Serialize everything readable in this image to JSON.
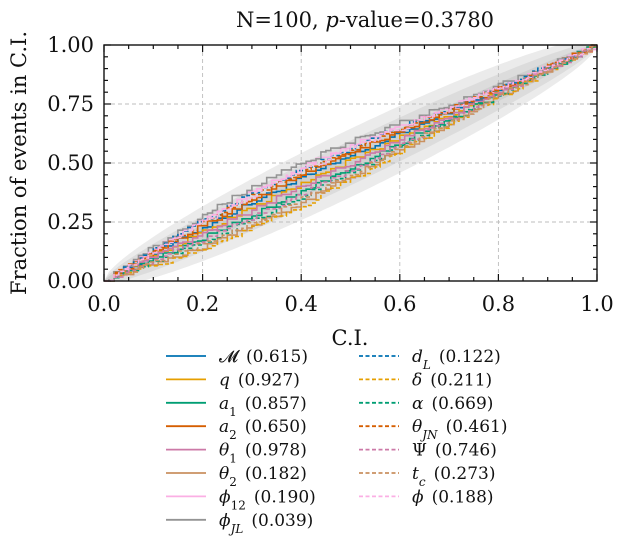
{
  "chart_data": {
    "type": "line",
    "title": "N=100, p-value=0.3780",
    "title_prefix": "N=100, ",
    "title_p": "p",
    "title_suffix": "-value=0.3780",
    "xlabel": "C.I.",
    "ylabel": "Fraction of events in C.I.",
    "xlim": [
      0.0,
      1.0
    ],
    "ylim": [
      0.0,
      1.0
    ],
    "xticks": [
      "0.0",
      "0.2",
      "0.4",
      "0.6",
      "0.8",
      "1.0"
    ],
    "yticks": [
      "0.00",
      "0.25",
      "0.50",
      "0.75",
      "1.00"
    ],
    "grid": true,
    "confidence_bands": [
      {
        "level": "1-sigma",
        "color": "#cfcfcf",
        "half_width_max": 0.048
      },
      {
        "level": "2-sigma",
        "color": "#dcdcdc",
        "half_width_max": 0.095
      },
      {
        "level": "3-sigma",
        "color": "#ebebeb",
        "half_width_max": 0.145
      }
    ],
    "series": [
      {
        "name": "M",
        "value": "(0.615)",
        "color": "#0072b2",
        "dash": false,
        "bend": 0.03
      },
      {
        "name": "q",
        "value": "(0.927)",
        "color": "#e69f00",
        "dash": false,
        "bend": 0.01
      },
      {
        "name": "a1",
        "value": "(0.857)",
        "color": "#009e73",
        "dash": false,
        "bend": -0.02
      },
      {
        "name": "a2",
        "value": "(0.650)",
        "color": "#d55e00",
        "dash": false,
        "bend": 0.04
      },
      {
        "name": "theta1",
        "value": "(0.978)",
        "color": "#cc79a7",
        "dash": false,
        "bend": 0.0
      },
      {
        "name": "theta2",
        "value": "(0.182)",
        "color": "#ca9161",
        "dash": false,
        "bend": -0.06
      },
      {
        "name": "phi12",
        "value": "(0.190)",
        "color": "#fbafe4",
        "dash": false,
        "bend": 0.07
      },
      {
        "name": "phiJL",
        "value": "(0.039)",
        "color": "#949494",
        "dash": false,
        "bend": 0.09
      },
      {
        "name": "dL",
        "value": "(0.122)",
        "color": "#0072b2",
        "dash": true,
        "bend": 0.06
      },
      {
        "name": "delta",
        "value": "(0.211)",
        "color": "#e69f00",
        "dash": true,
        "bend": -0.07
      },
      {
        "name": "alpha",
        "value": "(0.669)",
        "color": "#009e73",
        "dash": true,
        "bend": -0.04
      },
      {
        "name": "thetaJN",
        "value": "(0.461)",
        "color": "#d55e00",
        "dash": true,
        "bend": 0.05
      },
      {
        "name": "Psi",
        "value": "(0.746)",
        "color": "#cc79a7",
        "dash": true,
        "bend": -0.03
      },
      {
        "name": "tc",
        "value": "(0.273)",
        "color": "#ca9161",
        "dash": true,
        "bend": -0.05
      },
      {
        "name": "phi",
        "value": "(0.188)",
        "color": "#fbafe4",
        "dash": true,
        "bend": 0.06
      }
    ]
  }
}
